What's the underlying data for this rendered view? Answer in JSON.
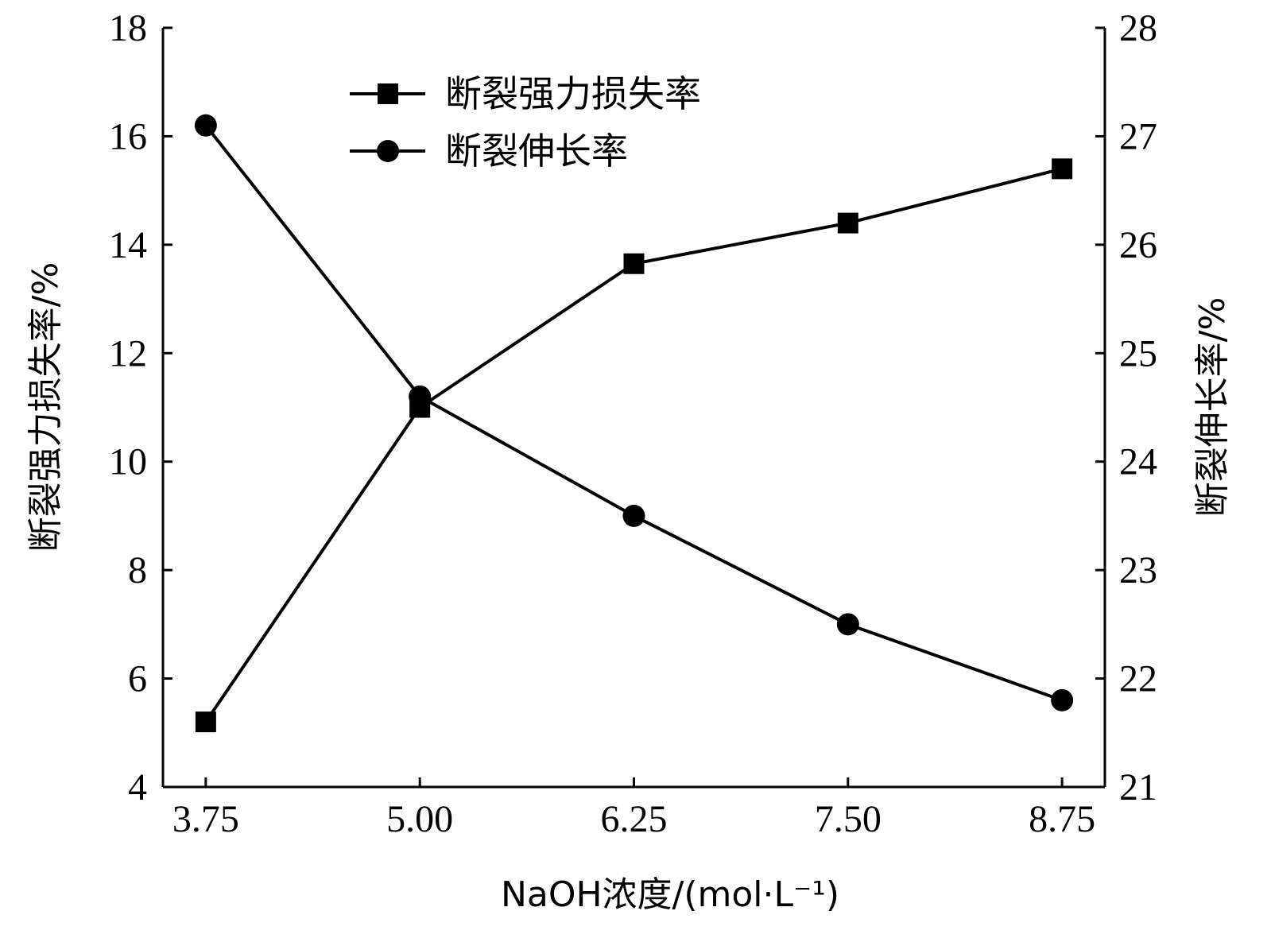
{
  "chart_data": {
    "type": "line",
    "x": [
      3.75,
      5.0,
      6.25,
      7.5,
      8.75
    ],
    "x_tick_labels": [
      "3.75",
      "5.00",
      "6.25",
      "7.50",
      "8.75"
    ],
    "xlim": [
      3.5,
      9.0
    ],
    "xlabel": "NaOH浓度/(mol·L⁻¹)",
    "ylabel_left": "断裂强力损失率/%",
    "ylabel_right": "断裂伸长率/%",
    "ylim_left": [
      4,
      18
    ],
    "ylim_right": [
      21,
      28
    ],
    "y_ticks_left": [
      "4",
      "6",
      "8",
      "10",
      "12",
      "14",
      "16",
      "18"
    ],
    "y_ticks_right": [
      "21",
      "22",
      "23",
      "24",
      "25",
      "26",
      "27",
      "28"
    ],
    "grid": false,
    "legend_position": "top-left",
    "series": [
      {
        "name": "断裂强力损失率",
        "axis": "left",
        "marker": "square",
        "color": "#000000",
        "values": [
          5.2,
          11.0,
          13.65,
          14.4,
          15.4
        ]
      },
      {
        "name": "断裂伸长率",
        "axis": "right",
        "marker": "circle",
        "color": "#000000",
        "values": [
          27.1,
          24.6,
          23.5,
          22.5,
          21.8
        ]
      }
    ]
  }
}
